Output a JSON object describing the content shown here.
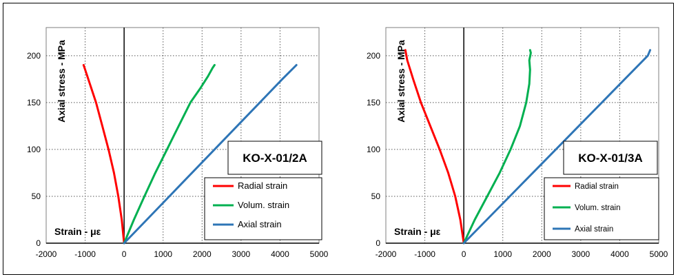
{
  "chart_data": [
    {
      "type": "line",
      "title": "KO-X-01/2A",
      "xlabel": "Strain - με",
      "ylabel": "Axial stress - MPa",
      "xlim": [
        -2000,
        5000
      ],
      "ylim": [
        0,
        230
      ],
      "xticks": [
        -2000,
        -1000,
        0,
        1000,
        2000,
        3000,
        4000,
        5000
      ],
      "yticks": [
        0,
        50,
        100,
        150,
        200
      ],
      "grid": true,
      "legend_position": "bottom-right",
      "series": [
        {
          "name": "Radial strain",
          "color": "#ff0000",
          "x": [
            0,
            -60,
            -150,
            -260,
            -400,
            -560,
            -720,
            -880,
            -1000,
            -1040
          ],
          "y": [
            0,
            25,
            50,
            75,
            100,
            125,
            150,
            170,
            185,
            190
          ]
        },
        {
          "name": "Volum. strain",
          "color": "#00b050",
          "x": [
            0,
            250,
            520,
            800,
            1100,
            1400,
            1700,
            1950,
            2150,
            2270,
            2320
          ],
          "y": [
            0,
            25,
            50,
            75,
            100,
            125,
            150,
            165,
            178,
            187,
            190
          ]
        },
        {
          "name": "Axial strain",
          "color": "#2e75b6",
          "x": [
            0,
            580,
            1160,
            1740,
            2320,
            2900,
            3480,
            4060,
            4420
          ],
          "y": [
            0,
            25,
            50,
            75,
            100,
            125,
            150,
            175,
            190
          ]
        }
      ]
    },
    {
      "type": "line",
      "title": "KO-X-01/3A",
      "xlabel": "Strain - με",
      "ylabel": "Axial stress - MPa",
      "xlim": [
        -2000,
        5000
      ],
      "ylim": [
        0,
        230
      ],
      "xticks": [
        -2000,
        -1000,
        0,
        1000,
        2000,
        3000,
        4000,
        5000
      ],
      "yticks": [
        0,
        50,
        100,
        150,
        200
      ],
      "grid": true,
      "legend_position": "bottom-right",
      "series": [
        {
          "name": "Radial strain",
          "color": "#ff0000",
          "x": [
            0,
            -90,
            -220,
            -400,
            -620,
            -860,
            -1100,
            -1300,
            -1450,
            -1500
          ],
          "y": [
            0,
            25,
            50,
            75,
            100,
            125,
            150,
            175,
            195,
            206
          ]
        },
        {
          "name": "Volum. strain",
          "color": "#00b050",
          "x": [
            0,
            280,
            600,
            920,
            1200,
            1440,
            1600,
            1680,
            1700,
            1680,
            1720,
            1700
          ],
          "y": [
            0,
            25,
            50,
            75,
            100,
            125,
            150,
            170,
            185,
            195,
            203,
            206
          ]
        },
        {
          "name": "Axial strain",
          "color": "#2e75b6",
          "x": [
            0,
            590,
            1180,
            1770,
            2360,
            2950,
            3540,
            4130,
            4720,
            4780
          ],
          "y": [
            0,
            25,
            50,
            75,
            100,
            125,
            150,
            175,
            200,
            206
          ]
        }
      ]
    }
  ]
}
